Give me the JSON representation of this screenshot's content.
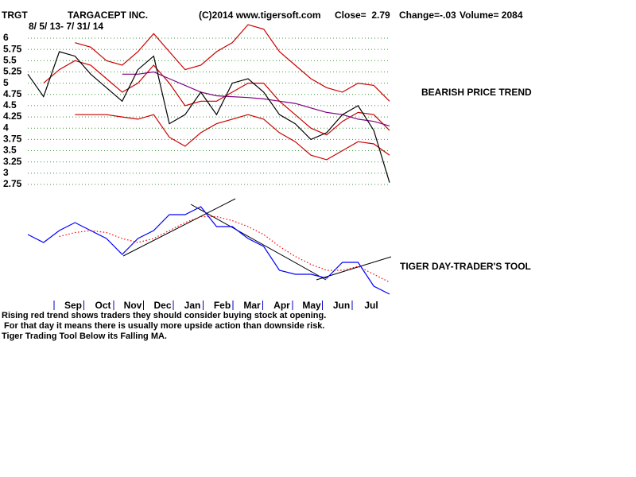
{
  "header": {
    "ticker": "TRGT",
    "company": "TARGACEPT INC.",
    "source": "(C)2014 www.tigersoft.com",
    "close": "Close=  2.79",
    "change": "Change=-.03",
    "volume": "Volume= 2084"
  },
  "chart_data": [
    {
      "type": "line",
      "subtitle": "8/ 5/ 13- 7/ 31/ 14",
      "annotation": "BEARISH PRICE TREND",
      "ylim": [
        2.75,
        6
      ],
      "yticks": [
        6,
        5.75,
        5.5,
        5.25,
        5,
        4.75,
        4.5,
        4.25,
        4,
        3.75,
        3.5,
        3.25,
        3,
        2.75
      ],
      "grid": true,
      "grid_color": "#339933",
      "series": [
        {
          "color": "#cc0000",
          "values": [
            null,
            null,
            null,
            5.9,
            5.8,
            5.5,
            5.4,
            5.7,
            6.1,
            5.7,
            5.3,
            5.4,
            5.7,
            5.9,
            6.3,
            6.2,
            5.7,
            5.4,
            5.1,
            4.9,
            4.8,
            5.0,
            4.95,
            4.6
          ]
        },
        {
          "color": "#cc0000",
          "values": [
            null,
            null,
            null,
            4.3,
            4.3,
            4.3,
            4.25,
            4.2,
            4.3,
            3.8,
            3.6,
            3.9,
            4.1,
            4.2,
            4.3,
            4.2,
            3.9,
            3.7,
            3.4,
            3.3,
            3.5,
            3.7,
            3.65,
            3.4
          ]
        },
        {
          "color": "#cc0000",
          "values": [
            null,
            5.0,
            5.3,
            5.5,
            5.4,
            5.1,
            4.8,
            5.0,
            5.4,
            5.0,
            4.5,
            4.6,
            4.6,
            4.8,
            5.0,
            5.0,
            4.6,
            4.3,
            4.0,
            3.85,
            4.15,
            4.35,
            4.3,
            3.95
          ]
        },
        {
          "color": "#800080",
          "values": [
            null,
            null,
            null,
            null,
            null,
            null,
            5.2,
            5.2,
            5.25,
            5.1,
            4.95,
            4.8,
            4.72,
            4.7,
            4.68,
            4.65,
            4.6,
            4.55,
            4.45,
            4.35,
            4.3,
            4.2,
            4.15,
            4.05
          ]
        },
        {
          "color": "#000000",
          "values": [
            5.2,
            4.7,
            5.7,
            5.6,
            5.2,
            4.9,
            4.6,
            5.3,
            5.6,
            4.1,
            4.3,
            4.8,
            4.3,
            5.0,
            5.1,
            4.8,
            4.3,
            4.1,
            3.75,
            3.9,
            4.3,
            4.5,
            3.95,
            2.79
          ]
        }
      ]
    },
    {
      "type": "line",
      "annotation": "TIGER DAY-TRADER'S TOOL",
      "ylim": [
        0,
        100
      ],
      "months": [
        "Sep",
        "Oct",
        "Nov",
        "Dec",
        "Jan",
        "Feb",
        "Mar",
        "Apr",
        "May",
        "Jun",
        "Jul"
      ],
      "series": [
        {
          "color": "#ff0000",
          "dashed": true,
          "values": [
            null,
            null,
            62,
            66,
            68,
            66,
            60,
            56,
            60,
            68,
            76,
            82,
            82,
            78,
            72,
            64,
            52,
            42,
            34,
            28,
            28,
            32,
            24,
            16
          ]
        },
        {
          "color": "#0000ff",
          "values": [
            64,
            56,
            68,
            76,
            68,
            60,
            44,
            60,
            68,
            84,
            84,
            92,
            72,
            72,
            60,
            52,
            28,
            24,
            24,
            20,
            36,
            36,
            12,
            4
          ]
        }
      ]
    }
  ],
  "notes": [
    "Rising red trend shows traders they should consider buying stock at opening.",
    " For that day it means there is usually more upside action than downside risk.",
    "Tiger Trading Tool Below its Falling MA."
  ]
}
